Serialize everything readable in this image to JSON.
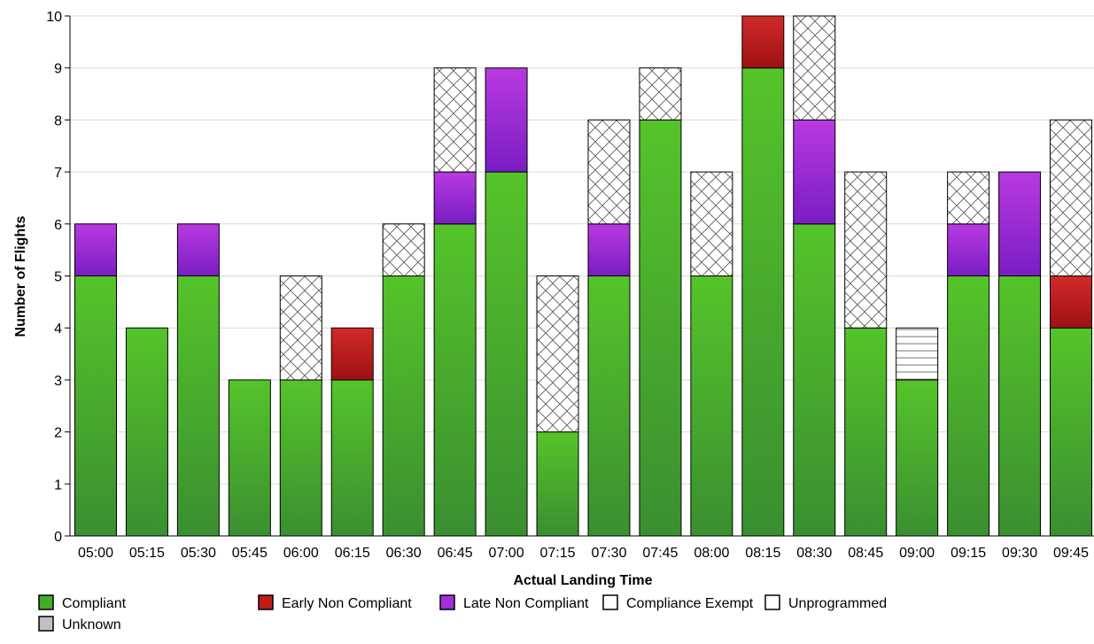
{
  "chart_data": {
    "type": "bar",
    "stacked": true,
    "xlabel": "Actual Landing Time",
    "ylabel": "Number of Flights",
    "ylim": [
      0,
      10
    ],
    "yticks": [
      0,
      1,
      2,
      3,
      4,
      5,
      6,
      7,
      8,
      9,
      10
    ],
    "grid": true,
    "legend_position": "bottom",
    "categories": [
      "05:00",
      "05:15",
      "05:30",
      "05:45",
      "06:00",
      "06:15",
      "06:30",
      "06:45",
      "07:00",
      "07:15",
      "07:30",
      "07:45",
      "08:00",
      "08:15",
      "08:30",
      "08:45",
      "09:00",
      "09:15",
      "09:30",
      "09:45"
    ],
    "series": [
      {
        "name": "Compliant",
        "key": "compliant",
        "color": "#3f9a2e",
        "pattern": "green-gradient",
        "values": [
          5,
          4,
          5,
          3,
          3,
          3,
          5,
          6,
          7,
          2,
          5,
          8,
          5,
          9,
          6,
          4,
          3,
          5,
          5,
          4
        ]
      },
      {
        "name": "Early Non Compliant",
        "key": "early",
        "color": "#b01818",
        "pattern": "red-gradient",
        "values": [
          0,
          0,
          0,
          0,
          0,
          1,
          0,
          0,
          0,
          0,
          0,
          0,
          0,
          1,
          0,
          0,
          0,
          0,
          0,
          1
        ]
      },
      {
        "name": "Late Non Compliant",
        "key": "late",
        "color": "#8a1fc8",
        "pattern": "purple-gradient",
        "values": [
          1,
          0,
          1,
          0,
          0,
          0,
          0,
          1,
          2,
          0,
          1,
          0,
          0,
          0,
          2,
          0,
          0,
          1,
          2,
          0
        ]
      },
      {
        "name": "Compliance Exempt",
        "key": "exempt",
        "color": "#ffffff",
        "pattern": "crosshatch",
        "values": [
          0,
          0,
          0,
          0,
          2,
          0,
          1,
          2,
          0,
          3,
          2,
          1,
          2,
          0,
          2,
          3,
          0,
          1,
          0,
          3
        ]
      },
      {
        "name": "Unprogrammed",
        "key": "unprogrammed",
        "color": "#ffffff",
        "pattern": "horizontal-lines",
        "values": [
          0,
          0,
          0,
          0,
          0,
          0,
          0,
          0,
          0,
          0,
          0,
          0,
          0,
          0,
          0,
          0,
          1,
          0,
          0,
          0
        ]
      },
      {
        "name": "Unknown",
        "key": "unknown",
        "color": "#c0c0c0",
        "pattern": "solid-grey",
        "values": [
          0,
          0,
          0,
          0,
          0,
          0,
          0,
          0,
          0,
          0,
          0,
          0,
          0,
          0,
          0,
          0,
          0,
          0,
          0,
          0
        ]
      }
    ]
  }
}
